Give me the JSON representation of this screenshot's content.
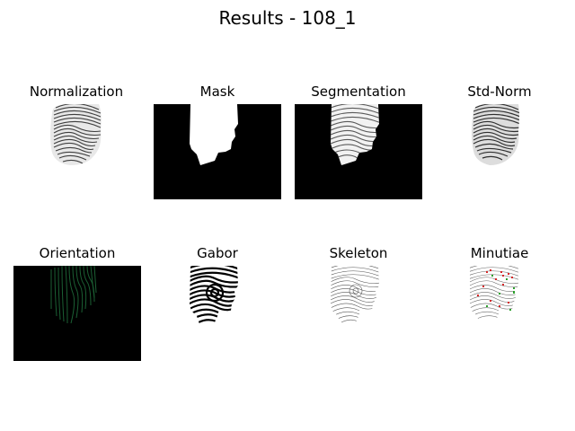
{
  "figure": {
    "title": "Results - 108_1"
  },
  "panels": [
    {
      "id": "normalization",
      "title": "Normalization",
      "background": "#ffffff"
    },
    {
      "id": "mask",
      "title": "Mask",
      "background": "#000000"
    },
    {
      "id": "segmentation",
      "title": "Segmentation",
      "background": "#000000"
    },
    {
      "id": "std-norm",
      "title": "Std-Norm",
      "background": "#ffffff"
    },
    {
      "id": "orientation",
      "title": "Orientation",
      "background": "#000000"
    },
    {
      "id": "gabor",
      "title": "Gabor",
      "background": "#ffffff"
    },
    {
      "id": "skeleton",
      "title": "Skeleton",
      "background": "#ffffff"
    },
    {
      "id": "minutiae",
      "title": "Minutiae",
      "background": "#ffffff"
    }
  ],
  "colors": {
    "orientation_lines": "#1f6b3a",
    "minutiae_ending": "#d62728",
    "minutiae_bifurcation": "#2ca02c"
  }
}
